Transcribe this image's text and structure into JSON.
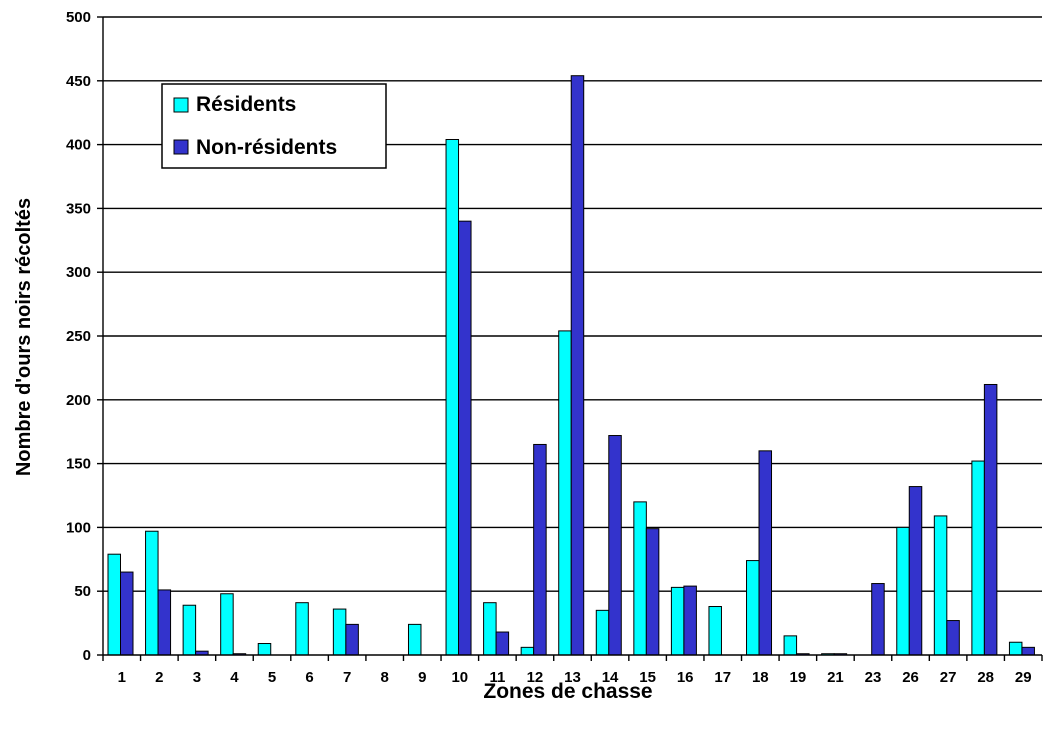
{
  "chart_data": {
    "type": "bar",
    "title": "",
    "xlabel": "Zones de chasse",
    "ylabel": "Nombre d'ours noirs récoltés",
    "ylim": [
      0,
      500
    ],
    "yticks": [
      0,
      50,
      100,
      150,
      200,
      250,
      300,
      350,
      400,
      450,
      500
    ],
    "grid": true,
    "legend_position": "top-left",
    "categories": [
      "1",
      "2",
      "3",
      "4",
      "5",
      "6",
      "7",
      "8",
      "9",
      "10",
      "11",
      "12",
      "13",
      "14",
      "15",
      "16",
      "17",
      "18",
      "19",
      "21",
      "23",
      "26",
      "27",
      "28",
      "29"
    ],
    "series": [
      {
        "name": "Résidents",
        "color": "#00ffff",
        "values": [
          79,
          97,
          39,
          48,
          9,
          41,
          36,
          0,
          24,
          404,
          41,
          6,
          254,
          35,
          120,
          53,
          38,
          74,
          15,
          1,
          0,
          100,
          109,
          152,
          10
        ]
      },
      {
        "name": "Non-résidents",
        "color": "#3333cc",
        "values": [
          65,
          51,
          3,
          1,
          0,
          0,
          24,
          0,
          0,
          340,
          18,
          165,
          454,
          172,
          99,
          54,
          0,
          160,
          1,
          1,
          56,
          132,
          27,
          212,
          6
        ]
      }
    ]
  }
}
